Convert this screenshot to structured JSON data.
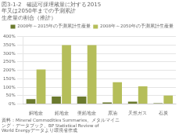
{
  "chart_data": {
    "type": "bar",
    "title": [
      "図3-1-2　確認可採埋蔵量に対する2015",
      "年又は2050年までの予測累計",
      "生産量の割合（推計）"
    ],
    "footnote": [
      "資料：Mineral Commodities Summaries、メタルマイニ",
      "ング・データブック、BP Statistical Review of",
      "World Energyデータより環境省作成"
    ],
    "categories": [
      "銅地金",
      "鉛地金",
      "亜鉛地金",
      "原油",
      "天然ガス",
      "石炭"
    ],
    "series": [
      {
        "name": "2008年～2015年の予測累計生産量",
        "color": "#6b7a2e",
        "values": [
          30,
          45,
          45,
          10,
          15,
          5
        ]
      },
      {
        "name": "2008年～2050年の予測累計生産量",
        "color": "#b5be5a",
        "values": [
          205,
          350,
          350,
          130,
          105,
          50
        ]
      }
    ],
    "ylim": [
      0,
      400
    ],
    "yticks": [
      {
        "value": 0,
        "label": "0%"
      },
      {
        "value": 50,
        "label": "50%"
      },
      {
        "value": 100,
        "label": "100%"
      },
      {
        "value": 150,
        "label": "150%"
      },
      {
        "value": 200,
        "label": "200%"
      },
      {
        "value": 250,
        "label": "250%"
      },
      {
        "value": 300,
        "label": "300%"
      },
      {
        "value": 350,
        "label": "350%"
      },
      {
        "value": 400,
        "label": "400%"
      }
    ],
    "grid": true,
    "legend": "upper right"
  }
}
